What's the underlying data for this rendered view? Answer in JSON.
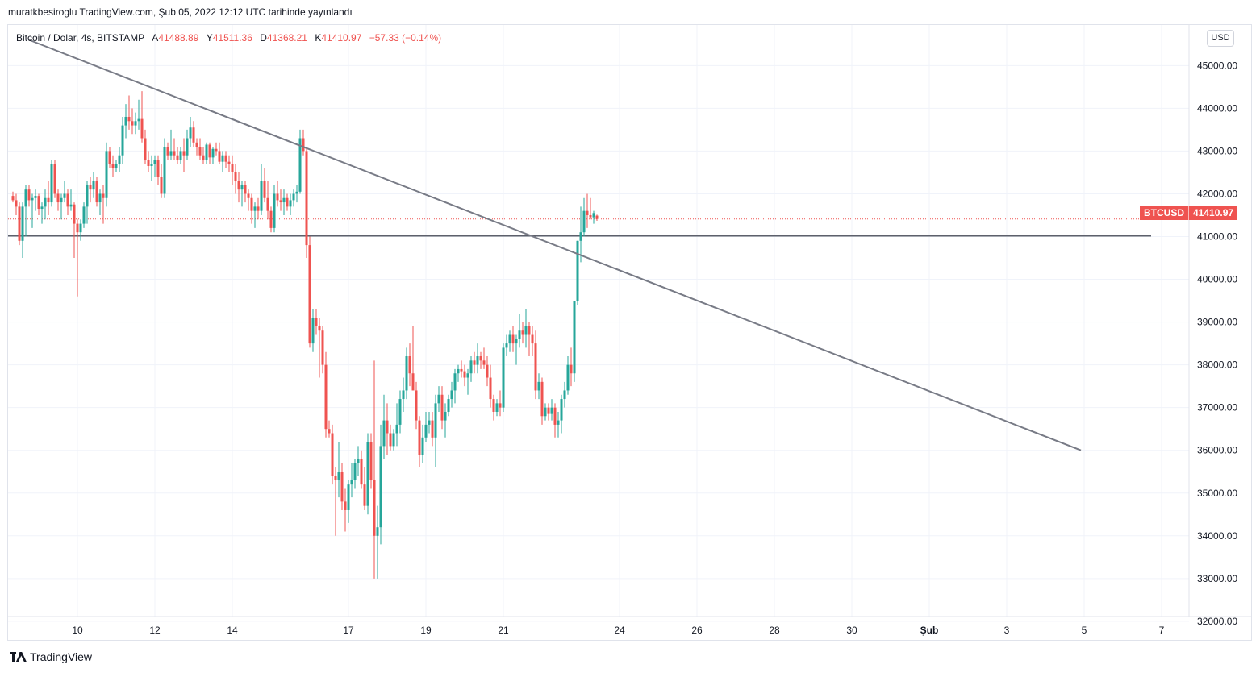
{
  "header": {
    "published": "muratkbesiroglu TradingView.com, Şub 05, 2022 12:12 UTC tarihinde yayınlandı"
  },
  "legend": {
    "symbol": "Bitcoin / Dolar, 4s, BITSTAMP",
    "open_label": "A",
    "open": "41488.89",
    "high_label": "Y",
    "high": "41511.36",
    "low_label": "D",
    "low": "41368.21",
    "close_label": "K",
    "close": "41410.97",
    "change": "−57.33 (−0.14%)"
  },
  "currency_button": "USD",
  "price_tag": {
    "symbol": "BTCUSD",
    "price": "41410.97"
  },
  "footer": {
    "brand": "TradingView"
  },
  "colors": {
    "up": "#26a69a",
    "down": "#ef5350",
    "trendline": "#787b86",
    "grid": "#f0f3fa"
  },
  "chart_data": {
    "type": "candlestick",
    "y_axis": {
      "range": [
        31800,
        45600
      ],
      "ticks": [
        "45000.00",
        "44000.00",
        "43000.00",
        "42000.00",
        "41000.00",
        "40000.00",
        "39000.00",
        "38000.00",
        "37000.00",
        "36000.00",
        "35000.00",
        "34000.00",
        "33000.00",
        "32000.00"
      ]
    },
    "x_axis": {
      "labels": [
        "10",
        "12",
        "14",
        "17",
        "19",
        "21",
        "24",
        "26",
        "28",
        "30",
        "Şub",
        "3",
        "5",
        "7"
      ],
      "label_bars": [
        20,
        44,
        68,
        104,
        128,
        152,
        188,
        212,
        236,
        260,
        284,
        308,
        332,
        356
      ]
    },
    "horizontal_lines": [
      {
        "price": 41020,
        "style": "solid"
      },
      {
        "price": 39680,
        "style": "dotted"
      },
      {
        "price": 41410.97,
        "style": "dotted"
      }
    ],
    "trendline": {
      "from": {
        "bar": 5,
        "price": 45600
      },
      "to": {
        "bar": 331,
        "price": 36000
      }
    },
    "bars": [
      [
        41950,
        42050,
        41800,
        41850
      ],
      [
        41850,
        42000,
        41500,
        41700
      ],
      [
        41700,
        41800,
        40800,
        40900
      ],
      [
        40900,
        41800,
        40500,
        41700
      ],
      [
        41700,
        42200,
        41000,
        42100
      ],
      [
        42100,
        42200,
        41700,
        41850
      ],
      [
        41850,
        42000,
        41200,
        41900
      ],
      [
        41900,
        42100,
        41600,
        41950
      ],
      [
        41950,
        42000,
        41500,
        41650
      ],
      [
        41650,
        41800,
        41300,
        41700
      ],
      [
        41700,
        42100,
        41400,
        41900
      ],
      [
        41900,
        42300,
        41500,
        41800
      ],
      [
        41800,
        42800,
        41700,
        42700
      ],
      [
        42700,
        42800,
        41900,
        42000
      ],
      [
        42000,
        42100,
        41600,
        41800
      ],
      [
        41800,
        42000,
        41400,
        41900
      ],
      [
        41900,
        42300,
        41800,
        42000
      ],
      [
        42000,
        42100,
        41500,
        41700
      ],
      [
        41700,
        42100,
        41600,
        41750
      ],
      [
        41750,
        41800,
        40500,
        41300
      ],
      [
        41300,
        41400,
        39600,
        41100
      ],
      [
        41100,
        41400,
        40900,
        41300
      ],
      [
        41300,
        41800,
        41200,
        41700
      ],
      [
        41700,
        42300,
        41300,
        42200
      ],
      [
        42200,
        42400,
        41800,
        42100
      ],
      [
        42100,
        42500,
        41900,
        42300
      ],
      [
        42300,
        42400,
        41700,
        41800
      ],
      [
        41800,
        42100,
        41500,
        42000
      ],
      [
        42000,
        42200,
        41300,
        41900
      ],
      [
        41900,
        43200,
        41700,
        43000
      ],
      [
        43000,
        43100,
        42600,
        42700
      ],
      [
        42700,
        42900,
        42400,
        42600
      ],
      [
        42600,
        42800,
        42500,
        42700
      ],
      [
        42700,
        43100,
        42500,
        42900
      ],
      [
        42900,
        43800,
        42700,
        43600
      ],
      [
        43600,
        44100,
        43300,
        43800
      ],
      [
        43800,
        44300,
        43500,
        43700
      ],
      [
        43700,
        44000,
        43400,
        43600
      ],
      [
        43600,
        43900,
        43400,
        43700
      ],
      [
        43700,
        44200,
        43500,
        43750
      ],
      [
        43750,
        44400,
        43200,
        43300
      ],
      [
        43300,
        43500,
        42700,
        42800
      ],
      [
        42800,
        43000,
        42500,
        42650
      ],
      [
        42650,
        42900,
        42300,
        42700
      ],
      [
        42700,
        42900,
        42400,
        42800
      ],
      [
        42800,
        42900,
        42200,
        42400
      ],
      [
        42400,
        42700,
        41900,
        42000
      ],
      [
        42000,
        43300,
        41900,
        43100
      ],
      [
        43100,
        43200,
        42800,
        42900
      ],
      [
        42900,
        43500,
        42800,
        43000
      ],
      [
        43000,
        43300,
        42800,
        42900
      ],
      [
        42900,
        43100,
        42700,
        42800
      ],
      [
        42800,
        43100,
        42700,
        43000
      ],
      [
        43000,
        43300,
        42500,
        42900
      ],
      [
        42900,
        43500,
        42800,
        43300
      ],
      [
        43300,
        43800,
        43100,
        43550
      ],
      [
        43550,
        43700,
        43100,
        43200
      ],
      [
        43200,
        43300,
        42900,
        43100
      ],
      [
        43100,
        43300,
        42800,
        42900
      ],
      [
        42900,
        43100,
        42700,
        42800
      ],
      [
        42800,
        43200,
        42700,
        43150
      ],
      [
        43150,
        43200,
        42700,
        42850
      ],
      [
        42850,
        43100,
        42700,
        43050
      ],
      [
        43050,
        43200,
        42900,
        43000
      ],
      [
        43000,
        43200,
        42700,
        42750
      ],
      [
        42750,
        43000,
        42500,
        42900
      ],
      [
        42900,
        43000,
        42600,
        42750
      ],
      [
        42750,
        42900,
        42500,
        42700
      ],
      [
        42700,
        42900,
        42200,
        42500
      ],
      [
        42500,
        42700,
        42000,
        42300
      ],
      [
        42300,
        42500,
        41800,
        42100
      ],
      [
        42100,
        42300,
        41700,
        42200
      ],
      [
        42200,
        42300,
        41800,
        42000
      ],
      [
        42000,
        42100,
        41600,
        41900
      ],
      [
        41900,
        42000,
        41300,
        41600
      ],
      [
        41600,
        41800,
        41200,
        41700
      ],
      [
        41700,
        41900,
        41400,
        41600
      ],
      [
        41600,
        42700,
        41500,
        42300
      ],
      [
        42300,
        42600,
        41800,
        41900
      ],
      [
        41900,
        42300,
        41400,
        41600
      ],
      [
        41600,
        41700,
        41100,
        41200
      ],
      [
        41200,
        42200,
        41100,
        42000
      ],
      [
        42000,
        42300,
        41700,
        41850
      ],
      [
        41850,
        42100,
        41600,
        41800
      ],
      [
        41800,
        42100,
        41500,
        41900
      ],
      [
        41900,
        42000,
        41600,
        41700
      ],
      [
        41700,
        42000,
        41500,
        41850
      ],
      [
        41850,
        42100,
        41700,
        42000
      ],
      [
        42000,
        42200,
        41800,
        42050
      ],
      [
        42050,
        43500,
        42000,
        43300
      ],
      [
        43300,
        43500,
        42900,
        43000
      ],
      [
        43000,
        43100,
        40500,
        40800
      ],
      [
        40800,
        41000,
        38400,
        38500
      ],
      [
        38500,
        39300,
        38300,
        39100
      ],
      [
        39100,
        39300,
        38700,
        38900
      ],
      [
        38900,
        39100,
        37700,
        38800
      ],
      [
        38800,
        38900,
        37800,
        38000
      ],
      [
        38000,
        38300,
        36300,
        36500
      ],
      [
        36500,
        36700,
        36300,
        36400
      ],
      [
        36400,
        36600,
        35200,
        35400
      ],
      [
        35400,
        35600,
        34000,
        35300
      ],
      [
        35300,
        36200,
        34900,
        35500
      ],
      [
        35500,
        35700,
        34600,
        34800
      ],
      [
        34800,
        35100,
        34100,
        34600
      ],
      [
        34600,
        35300,
        34300,
        35200
      ],
      [
        35200,
        35700,
        34900,
        35300
      ],
      [
        35300,
        35800,
        35100,
        35700
      ],
      [
        35700,
        36100,
        35400,
        35800
      ],
      [
        35800,
        36000,
        35100,
        35200
      ],
      [
        35200,
        35600,
        34600,
        34700
      ],
      [
        34700,
        36400,
        34500,
        36200
      ],
      [
        36200,
        36400,
        35100,
        35300
      ],
      [
        35300,
        38100,
        33000,
        34000
      ],
      [
        34000,
        34700,
        33000,
        34200
      ],
      [
        34200,
        36600,
        33800,
        36100
      ],
      [
        36100,
        37300,
        35800,
        36700
      ],
      [
        36700,
        37100,
        35900,
        36400
      ],
      [
        36400,
        36600,
        36000,
        36100
      ],
      [
        36100,
        36500,
        36000,
        36400
      ],
      [
        36400,
        37100,
        36100,
        36600
      ],
      [
        36600,
        37400,
        36400,
        37200
      ],
      [
        37200,
        37700,
        36900,
        37400
      ],
      [
        37400,
        38400,
        37200,
        38200
      ],
      [
        38200,
        38500,
        37500,
        37800
      ],
      [
        37800,
        38900,
        37600,
        37400
      ],
      [
        37400,
        37600,
        36500,
        36700
      ],
      [
        36700,
        36800,
        35600,
        35900
      ],
      [
        35900,
        36600,
        35700,
        36300
      ],
      [
        36300,
        36900,
        36200,
        36600
      ],
      [
        36600,
        36900,
        36400,
        36700
      ],
      [
        36700,
        36900,
        36100,
        36300
      ],
      [
        36300,
        37300,
        35600,
        37100
      ],
      [
        37100,
        37500,
        36900,
        37300
      ],
      [
        37300,
        37500,
        36500,
        36700
      ],
      [
        36700,
        37100,
        36300,
        36900
      ],
      [
        36900,
        37300,
        36800,
        37200
      ],
      [
        37200,
        37600,
        37000,
        37400
      ],
      [
        37400,
        37900,
        37100,
        37800
      ],
      [
        37800,
        38000,
        37600,
        37900
      ],
      [
        37900,
        38100,
        37700,
        37850
      ],
      [
        37850,
        38000,
        37500,
        37700
      ],
      [
        37700,
        37900,
        37300,
        37800
      ],
      [
        37800,
        38200,
        37600,
        38100
      ],
      [
        38100,
        38300,
        37800,
        38000
      ],
      [
        38000,
        38500,
        37800,
        38200
      ],
      [
        38200,
        38300,
        37900,
        38100
      ],
      [
        38100,
        38400,
        37900,
        38000
      ],
      [
        38000,
        38200,
        37500,
        37700
      ],
      [
        37700,
        38000,
        37000,
        37200
      ],
      [
        37200,
        37300,
        36700,
        36900
      ],
      [
        36900,
        37200,
        36800,
        37100
      ],
      [
        37100,
        37400,
        36800,
        37000
      ],
      [
        37000,
        38500,
        36900,
        38400
      ],
      [
        38400,
        38700,
        38200,
        38500
      ],
      [
        38500,
        38800,
        38300,
        38700
      ],
      [
        38700,
        38900,
        38300,
        38500
      ],
      [
        38500,
        38700,
        38000,
        38600
      ],
      [
        38600,
        39200,
        38400,
        38800
      ],
      [
        38800,
        39000,
        38500,
        38700
      ],
      [
        38700,
        39300,
        38400,
        38900
      ],
      [
        38900,
        39000,
        38200,
        38700
      ],
      [
        38700,
        38900,
        38200,
        38500
      ],
      [
        38500,
        38800,
        37200,
        37400
      ],
      [
        37400,
        37800,
        37200,
        37600
      ],
      [
        37600,
        37700,
        36600,
        36800
      ],
      [
        36800,
        37100,
        36700,
        37000
      ],
      [
        37000,
        37100,
        36700,
        36850
      ],
      [
        36850,
        37200,
        36700,
        37000
      ],
      [
        37000,
        37100,
        36300,
        36600
      ],
      [
        36600,
        36900,
        36300,
        36700
      ],
      [
        36700,
        37300,
        36400,
        37200
      ],
      [
        37200,
        37600,
        37000,
        37400
      ],
      [
        37400,
        38200,
        37300,
        38000
      ],
      [
        38000,
        38400,
        37500,
        37800
      ],
      [
        37800,
        39500,
        37600,
        39500
      ],
      [
        39500,
        40900,
        39400,
        40900
      ],
      [
        40900,
        41700,
        40400,
        41100
      ],
      [
        41100,
        41900,
        41000,
        41600
      ],
      [
        41600,
        42000,
        41200,
        41500
      ],
      [
        41500,
        41900,
        41400,
        41450
      ],
      [
        41450,
        41600,
        41300,
        41550
      ],
      [
        41489,
        41511,
        41368,
        41411
      ]
    ]
  }
}
